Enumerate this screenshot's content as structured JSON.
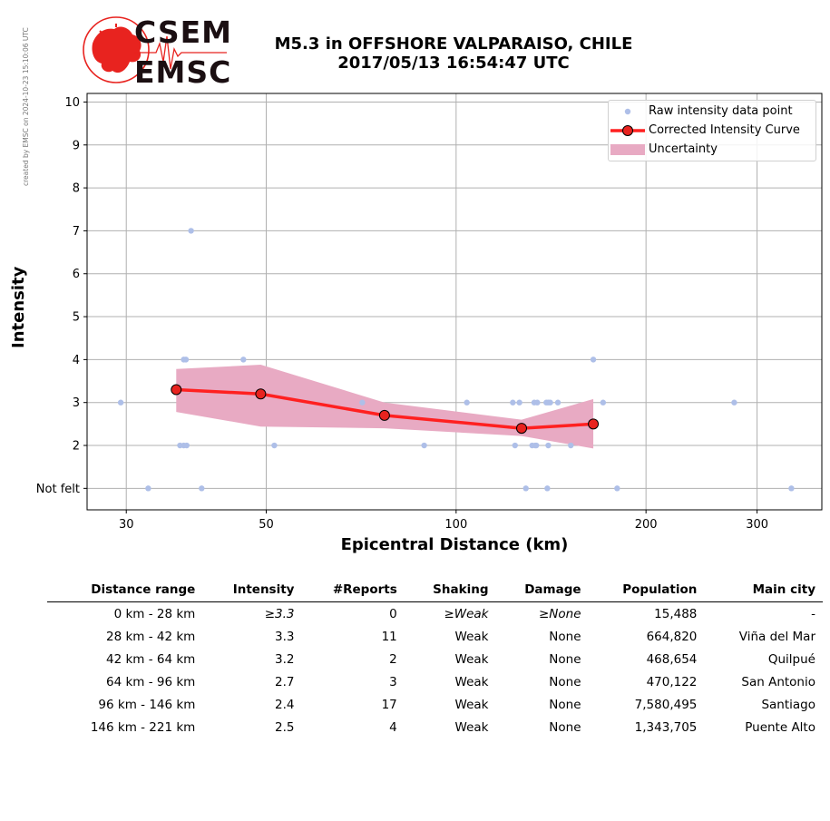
{
  "credit": "created by EMSC on 2024-10-23 15:10:06 UTC",
  "logo": {
    "line1": "CSEM",
    "line2": "EMSC"
  },
  "header": {
    "title_line1": "M5.3 in OFFSHORE VALPARAISO, CHILE",
    "title_line2": "2017/05/13 16:54:47 UTC"
  },
  "chart_data": {
    "type": "scatter",
    "xlabel": "Epicentral Distance (km)",
    "ylabel": "Intensity",
    "x_scale": "log",
    "xlim": [
      26,
      380
    ],
    "ylim": [
      0.5,
      10.2
    ],
    "x_ticks": [
      30,
      50,
      100,
      200,
      300
    ],
    "y_ticks": [
      {
        "value": 1,
        "label": "Not felt"
      },
      {
        "value": 2,
        "label": "2"
      },
      {
        "value": 3,
        "label": "3"
      },
      {
        "value": 4,
        "label": "4"
      },
      {
        "value": 5,
        "label": "5"
      },
      {
        "value": 6,
        "label": "6"
      },
      {
        "value": 7,
        "label": "7"
      },
      {
        "value": 8,
        "label": "8"
      },
      {
        "value": 9,
        "label": "9"
      },
      {
        "value": 10,
        "label": "10"
      }
    ],
    "grid": true,
    "legend_position": "top-right",
    "colors": {
      "raw": "#aebfe8",
      "curve": "#ff2020",
      "marker_face": "#e8231f",
      "uncertainty": "#e8aac3"
    },
    "legend": [
      "Raw intensity data point",
      "Corrected Intensity Curve",
      "Uncertainty"
    ],
    "raw_points": [
      [
        29.4,
        3
      ],
      [
        32.5,
        1
      ],
      [
        36.5,
        2
      ],
      [
        37,
        4
      ],
      [
        37.3,
        4
      ],
      [
        37,
        2
      ],
      [
        37.4,
        2
      ],
      [
        38,
        7
      ],
      [
        39.5,
        1
      ],
      [
        46,
        4
      ],
      [
        51.5,
        2
      ],
      [
        71,
        3
      ],
      [
        89,
        2
      ],
      [
        104,
        3
      ],
      [
        123,
        3
      ],
      [
        124,
        2
      ],
      [
        126,
        3
      ],
      [
        129,
        1
      ],
      [
        132,
        2
      ],
      [
        133,
        3
      ],
      [
        133.5,
        2
      ],
      [
        134,
        2
      ],
      [
        134.5,
        3
      ],
      [
        139,
        3
      ],
      [
        140,
        3
      ],
      [
        139.5,
        1
      ],
      [
        140,
        2
      ],
      [
        141,
        3
      ],
      [
        145,
        3
      ],
      [
        152,
        2
      ],
      [
        165,
        4
      ],
      [
        171,
        3
      ],
      [
        180,
        1
      ],
      [
        276,
        3
      ],
      [
        340,
        1
      ]
    ],
    "curve": {
      "x": [
        36,
        49,
        77,
        127,
        165
      ],
      "y": [
        3.3,
        3.2,
        2.7,
        2.4,
        2.5
      ],
      "upper": [
        3.78,
        3.88,
        3.0,
        2.6,
        3.08
      ],
      "lower": [
        2.78,
        2.44,
        2.4,
        2.22,
        1.93
      ]
    }
  },
  "table": {
    "headers": [
      "Distance range",
      "Intensity",
      "#Reports",
      "Shaking",
      "Damage",
      "Population",
      "Main city"
    ],
    "rows": [
      [
        "0 km -   28 km",
        "≥3.3",
        "0",
        "≥Weak",
        "≥None",
        "15,488",
        "-"
      ],
      [
        "28 km -   42 km",
        "3.3",
        "11",
        "Weak",
        "None",
        "664,820",
        "Viña del Mar"
      ],
      [
        "42 km -   64 km",
        "3.2",
        "2",
        "Weak",
        "None",
        "468,654",
        "Quilpué"
      ],
      [
        "64 km -   96 km",
        "2.7",
        "3",
        "Weak",
        "None",
        "470,122",
        "San Antonio"
      ],
      [
        "96 km -  146 km",
        "2.4",
        "17",
        "Weak",
        "None",
        "7,580,495",
        "Santiago"
      ],
      [
        "146 km -  221 km",
        "2.5",
        "4",
        "Weak",
        "None",
        "1,343,705",
        "Puente Alto"
      ]
    ]
  }
}
